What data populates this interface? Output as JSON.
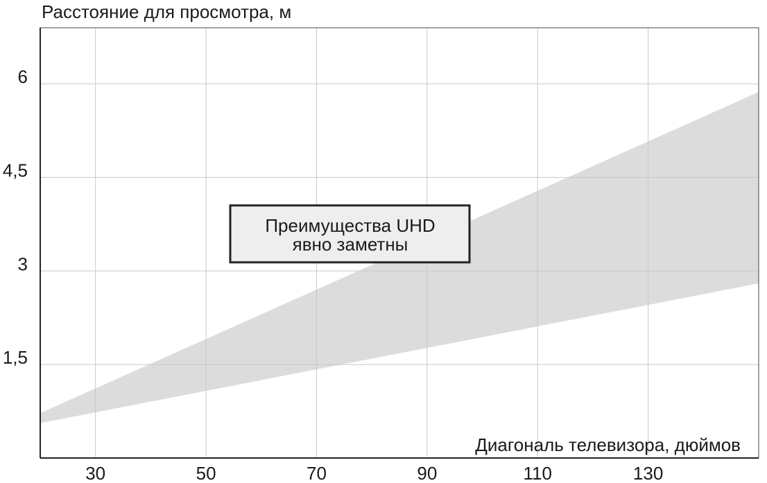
{
  "chart_data": {
    "type": "band",
    "y_label": "Расстояние для просмотра, м",
    "x_label": "Диагональ телевизора, дюймов",
    "annotation": [
      "Преимущества UHD",
      "явно заметны"
    ],
    "x": [
      20,
      150
    ],
    "lower": [
      0.56,
      2.8
    ],
    "upper": [
      0.72,
      5.87
    ],
    "color": "#dcdcdc",
    "xlim": [
      20,
      150
    ],
    "xticks": [
      30,
      50,
      70,
      90,
      110,
      130
    ],
    "ylim": [
      0,
      6.9
    ],
    "yticks": [
      {
        "value": 1.5,
        "label": "1,5"
      },
      3,
      {
        "value": 4.5,
        "label": "4,5"
      },
      6
    ],
    "grid": true
  }
}
